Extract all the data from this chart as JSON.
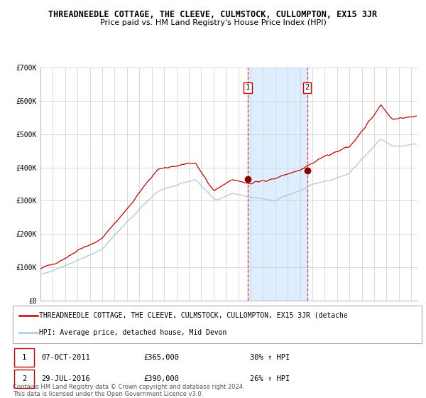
{
  "title": "THREADNEEDLE COTTAGE, THE CLEEVE, CULMSTOCK, CULLOMPTON, EX15 3JR",
  "subtitle": "Price paid vs. HM Land Registry's House Price Index (HPI)",
  "ylim": [
    0,
    700000
  ],
  "xlim_start": 1995.0,
  "xlim_end": 2025.5,
  "sale1_x": 2011.77,
  "sale1_y": 365000,
  "sale2_x": 2016.57,
  "sale2_y": 390000,
  "sale1_date": "07-OCT-2011",
  "sale1_price": "£365,000",
  "sale1_hpi": "30% ↑ HPI",
  "sale2_date": "29-JUL-2016",
  "sale2_price": "£390,000",
  "sale2_hpi": "26% ↑ HPI",
  "hpi_line_color": "#adc6e0",
  "price_line_color": "#cc0000",
  "marker_color": "#8b0000",
  "shade_color": "#ddeeff",
  "dashed_line_color": "#ee3333",
  "background_color": "#ffffff",
  "grid_color": "#cccccc",
  "copyright_text": "Contains HM Land Registry data © Crown copyright and database right 2024.\nThis data is licensed under the Open Government Licence v3.0.",
  "legend_line1": "THREADNEEDLE COTTAGE, THE CLEEVE, CULMSTOCK, CULLOMPTON, EX15 3JR (detache",
  "legend_line2": "HPI: Average price, detached house, Mid Devon",
  "title_fontsize": 8.5,
  "subtitle_fontsize": 8,
  "tick_fontsize": 7,
  "legend_fontsize": 7
}
